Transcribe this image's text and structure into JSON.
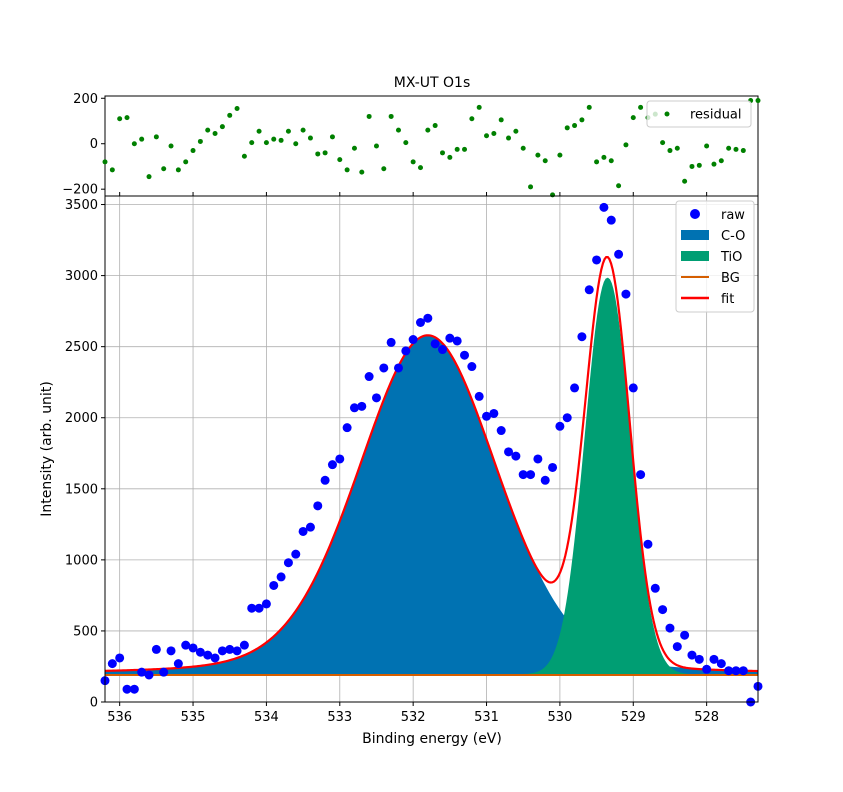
{
  "title": "MX-UT O1s",
  "colors": {
    "raw": "#0000ff",
    "co": "#0072b2",
    "tio": "#009e73",
    "bg": "#d55e00",
    "fit": "#ff0000",
    "residual": "#008000"
  },
  "chart_data": [
    {
      "type": "scatter",
      "panel": "residual",
      "title": "MX-UT O1s",
      "xlim": [
        536.2,
        527.3
      ],
      "ylim": [
        -230,
        210
      ],
      "yticks": [
        -200,
        0,
        200
      ],
      "ytick_labels": [
        "−200",
        "0",
        "200"
      ],
      "grid": false,
      "legend": {
        "placement": "top-right",
        "entries": [
          "residual"
        ]
      },
      "series": [
        {
          "name": "residual",
          "x": [
            536.2,
            536.1,
            536.0,
            535.9,
            535.8,
            535.7,
            535.6,
            535.5,
            535.4,
            535.3,
            535.2,
            535.1,
            535.0,
            534.9,
            534.8,
            534.7,
            534.6,
            534.5,
            534.4,
            534.3,
            534.2,
            534.1,
            534.0,
            533.9,
            533.8,
            533.7,
            533.6,
            533.5,
            533.4,
            533.3,
            533.2,
            533.1,
            533.0,
            532.9,
            532.8,
            532.7,
            532.6,
            532.5,
            532.4,
            532.3,
            532.2,
            532.1,
            532.0,
            531.9,
            531.8,
            531.7,
            531.6,
            531.5,
            531.4,
            531.3,
            531.2,
            531.1,
            531.0,
            530.9,
            530.8,
            530.7,
            530.6,
            530.5,
            530.4,
            530.3,
            530.2,
            530.1,
            530.0,
            529.9,
            529.8,
            529.7,
            529.6,
            529.5,
            529.4,
            529.3,
            529.2,
            529.1,
            529.0,
            528.9,
            528.8,
            528.7,
            528.6,
            528.5,
            528.4,
            528.3,
            528.2,
            528.1,
            528.0,
            527.9,
            527.8,
            527.7,
            527.6,
            527.5,
            527.4,
            527.3
          ],
          "values": [
            -80,
            -115,
            110,
            115,
            0,
            20,
            -145,
            30,
            -110,
            -10,
            -115,
            -80,
            -30,
            10,
            60,
            45,
            75,
            125,
            155,
            -55,
            5,
            55,
            5,
            20,
            15,
            55,
            0,
            60,
            25,
            -45,
            -40,
            30,
            -70,
            -115,
            -20,
            -125,
            120,
            -10,
            -110,
            120,
            60,
            5,
            -80,
            -105,
            60,
            80,
            -40,
            -60,
            -25,
            -25,
            110,
            160,
            35,
            45,
            105,
            25,
            55,
            -20,
            -190,
            -50,
            -75,
            -225,
            -50,
            70,
            80,
            105,
            160,
            -80,
            -60,
            -75,
            -185,
            -5,
            115,
            160,
            115,
            130,
            5,
            -30,
            -20,
            -165,
            -100,
            -95,
            -10,
            -90,
            -75,
            -20,
            -25,
            -30,
            190,
            190
          ]
        }
      ]
    },
    {
      "type": "line",
      "panel": "main",
      "xlabel": "Binding energy (eV)",
      "ylabel": "Intensity (arb. unit)",
      "xlim": [
        536.2,
        527.3
      ],
      "ylim": [
        0,
        3560
      ],
      "xticks": [
        536,
        535,
        534,
        533,
        532,
        531,
        530,
        529,
        528
      ],
      "yticks": [
        0,
        500,
        1000,
        1500,
        2000,
        2500,
        3000,
        3500
      ],
      "grid": true,
      "legend": {
        "placement": "top-right",
        "entries": [
          "raw",
          "C-O",
          "TiO",
          "BG",
          "fit"
        ]
      },
      "background": 190,
      "components": [
        {
          "name": "C-O",
          "kind": "area",
          "center": 531.8,
          "height": 2390,
          "sigma": 0.95,
          "lorentz_frac": 0.2
        },
        {
          "name": "TiO",
          "kind": "area",
          "center": 529.35,
          "height": 2790,
          "sigma": 0.3,
          "lorentz_frac": 0.0
        }
      ],
      "bg_value": 190,
      "series": [
        {
          "name": "raw",
          "x": [
            536.2,
            536.1,
            536.0,
            535.9,
            535.8,
            535.7,
            535.6,
            535.5,
            535.4,
            535.3,
            535.2,
            535.1,
            535.0,
            534.9,
            534.8,
            534.7,
            534.6,
            534.5,
            534.4,
            534.3,
            534.2,
            534.1,
            534.0,
            533.9,
            533.8,
            533.7,
            533.6,
            533.5,
            533.4,
            533.3,
            533.2,
            533.1,
            533.0,
            532.9,
            532.8,
            532.7,
            532.6,
            532.5,
            532.4,
            532.3,
            532.2,
            532.1,
            532.0,
            531.9,
            531.8,
            531.7,
            531.6,
            531.5,
            531.4,
            531.3,
            531.2,
            531.1,
            531.0,
            530.9,
            530.8,
            530.7,
            530.6,
            530.5,
            530.4,
            530.3,
            530.2,
            530.1,
            530.0,
            529.9,
            529.8,
            529.7,
            529.6,
            529.5,
            529.4,
            529.3,
            529.2,
            529.1,
            529.0,
            528.9,
            528.8,
            528.7,
            528.6,
            528.5,
            528.4,
            528.3,
            528.2,
            528.1,
            528.0,
            527.9,
            527.8,
            527.7,
            527.6,
            527.5,
            527.4,
            527.3
          ],
          "values": [
            150,
            270,
            310,
            90,
            90,
            210,
            190,
            370,
            210,
            360,
            270,
            400,
            380,
            350,
            330,
            310,
            360,
            370,
            360,
            400,
            660,
            660,
            690,
            820,
            880,
            980,
            1040,
            1200,
            1230,
            1380,
            1560,
            1670,
            1710,
            1930,
            2070,
            2080,
            2290,
            2140,
            2350,
            2530,
            2350,
            2470,
            2550,
            2670,
            2700,
            2520,
            2480,
            2560,
            2540,
            2440,
            2360,
            2150,
            2010,
            2030,
            1910,
            1760,
            1730,
            1600,
            1600,
            1710,
            1560,
            1650,
            1940,
            2000,
            2210,
            2570,
            2900,
            3110,
            3480,
            3390,
            3150,
            2870,
            2210,
            1600,
            1110,
            800,
            650,
            520,
            390,
            470,
            330,
            300,
            230,
            300,
            270,
            220,
            220,
            220,
            0,
            110
          ]
        },
        {
          "name": "fit",
          "kind": "line"
        }
      ]
    }
  ]
}
